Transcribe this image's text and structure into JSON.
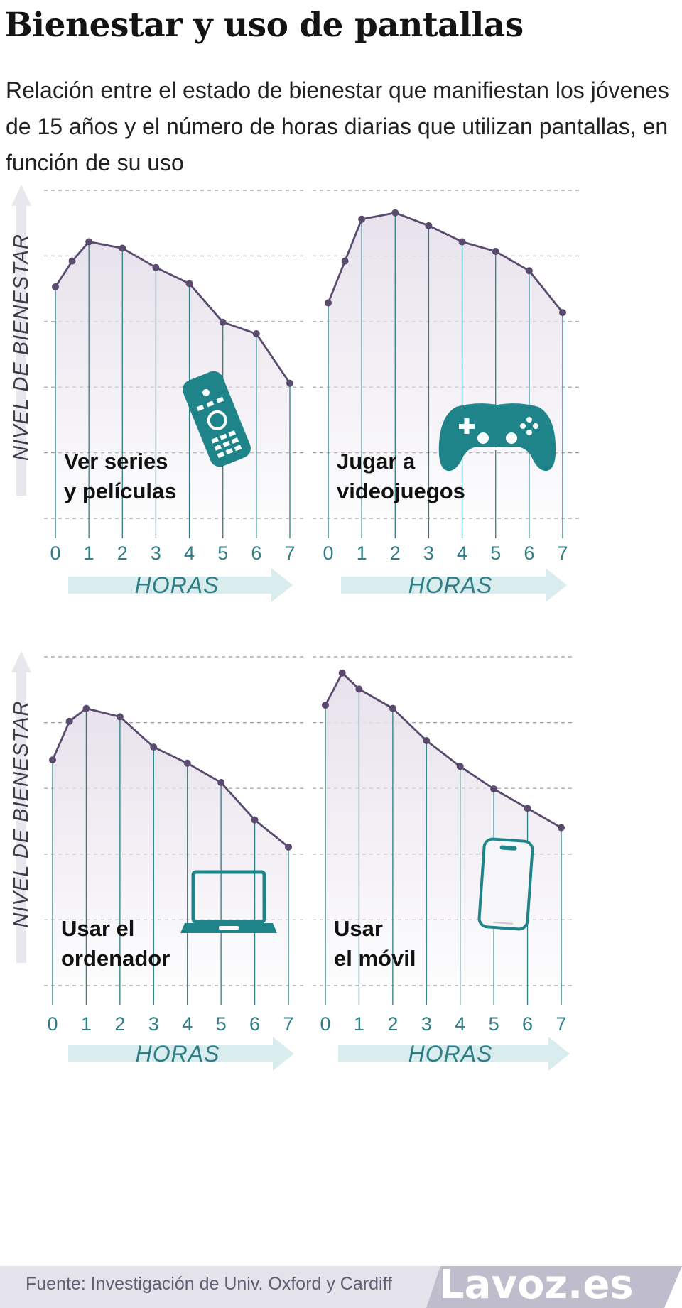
{
  "title": "Bienestar y uso de pantallas",
  "subtitle": "Relación entre el estado de bienestar que manifiestan los jóvenes de 15 años y el número de horas diarias que utilizan pantallas, en función de su uso",
  "source": "Fuente: Investigación de Univ. Oxford y Cardiff",
  "brand": "Lavoz.es",
  "colors": {
    "line": "#5a4a6e",
    "area": "#e7e2ec",
    "icon": "#1f8489",
    "text_axis": "#2f7e86",
    "arrow_horizontal": "#d9ecee",
    "arrow_vertical": "#e9e6ed",
    "source_bar": "#bfbccb"
  },
  "chart_data": [
    {
      "type": "line",
      "label": [
        "Ver series",
        "y películas"
      ],
      "icon": "tv-remote-icon",
      "x": [
        0,
        0.5,
        1,
        2,
        3,
        4,
        5,
        6,
        7
      ],
      "y": [
        3.5,
        3.9,
        4.2,
        4.1,
        3.8,
        3.55,
        2.95,
        2.77,
        2.0
      ],
      "xticks": [
        "0",
        "1",
        "2",
        "3",
        "4",
        "5",
        "6",
        "7"
      ],
      "xlabel": "HORAS",
      "ylabel": "NIVEL DE BIENESTAR",
      "xlim": [
        0,
        7
      ],
      "ylim": [
        -0.1,
        5
      ],
      "grid": true
    },
    {
      "type": "line",
      "label": [
        "Jugar a",
        "videojuegos"
      ],
      "icon": "game-controller-icon",
      "x": [
        0,
        0.5,
        1,
        2,
        3,
        4,
        5,
        6,
        7
      ],
      "y": [
        3.25,
        3.9,
        4.55,
        4.65,
        4.45,
        4.2,
        4.05,
        3.75,
        3.1
      ],
      "xticks": [
        "0",
        "1",
        "2",
        "3",
        "4",
        "5",
        "6",
        "7"
      ],
      "xlabel": "HORAS",
      "ylabel": "",
      "xlim": [
        0,
        7
      ],
      "ylim": [
        -0.1,
        5
      ],
      "grid": true
    },
    {
      "type": "line",
      "label": [
        "Usar el",
        "ordenador"
      ],
      "icon": "laptop-icon",
      "x": [
        0,
        0.5,
        1,
        2,
        3,
        4,
        5,
        6,
        7
      ],
      "y": [
        3.4,
        4.0,
        4.2,
        4.07,
        3.6,
        3.35,
        3.05,
        2.47,
        2.05
      ],
      "xticks": [
        "0",
        "1",
        "2",
        "3",
        "4",
        "5",
        "6",
        "7"
      ],
      "xlabel": "HORAS",
      "ylabel": "NIVEL DE BIENESTAR",
      "xlim": [
        0,
        7
      ],
      "ylim": [
        -0.1,
        5
      ],
      "grid": true
    },
    {
      "type": "line",
      "label": [
        "Usar",
        "el móvil"
      ],
      "icon": "smartphone-icon",
      "x": [
        0,
        0.5,
        1,
        2,
        3,
        4,
        5,
        6,
        7
      ],
      "y": [
        4.25,
        4.75,
        4.5,
        4.2,
        3.7,
        3.3,
        2.95,
        2.65,
        2.35
      ],
      "xticks": [
        "0",
        "1",
        "2",
        "3",
        "4",
        "5",
        "6",
        "7"
      ],
      "xlabel": "HORAS",
      "ylabel": "",
      "xlim": [
        0,
        7
      ],
      "ylim": [
        -0.1,
        5
      ],
      "grid": true
    }
  ]
}
